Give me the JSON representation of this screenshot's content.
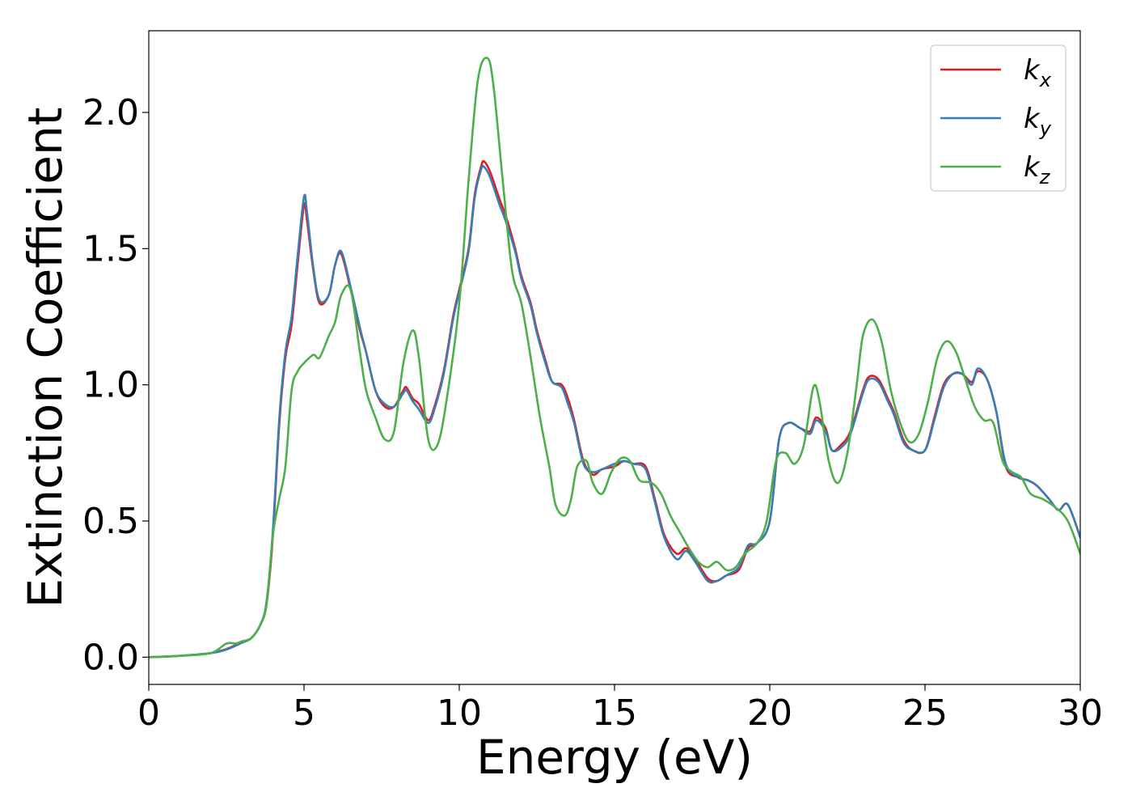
{
  "chart_data": {
    "type": "line",
    "title": "",
    "xlabel": "Energy (eV)",
    "ylabel": "Extinction Coefficient",
    "xlim": [
      0,
      30
    ],
    "ylim": [
      -0.1,
      2.3
    ],
    "xticks": [
      0,
      5,
      10,
      15,
      20,
      25,
      30
    ],
    "xtick_labels": [
      "0",
      "5",
      "10",
      "15",
      "20",
      "25",
      "30"
    ],
    "yticks": [
      0.0,
      0.5,
      1.0,
      1.5,
      2.0
    ],
    "ytick_labels": [
      "0.0",
      "0.5",
      "1.0",
      "1.5",
      "2.0"
    ],
    "grid": false,
    "legend_position": "top-right",
    "series": [
      {
        "name": "k_x",
        "label_base": "k",
        "label_sub": "x",
        "color": "#e41a1c",
        "x": [
          0,
          1,
          2,
          2.5,
          3,
          3.3,
          3.6,
          3.8,
          4.0,
          4.2,
          4.4,
          4.6,
          4.8,
          5.0,
          5.1,
          5.3,
          5.5,
          5.8,
          6.0,
          6.2,
          6.5,
          6.8,
          7.0,
          7.3,
          7.6,
          7.9,
          8.2,
          8.3,
          8.5,
          8.7,
          9.0,
          9.2,
          9.5,
          9.8,
          10.0,
          10.3,
          10.5,
          10.7,
          10.8,
          11.0,
          11.3,
          11.5,
          11.8,
          12.0,
          12.3,
          12.5,
          12.8,
          13.0,
          13.3,
          13.5,
          13.7,
          14.0,
          14.3,
          14.6,
          15.0,
          15.3,
          15.6,
          16.0,
          16.3,
          16.6,
          17.0,
          17.3,
          17.6,
          18.0,
          18.3,
          18.6,
          19.0,
          19.3,
          19.6,
          20.0,
          20.3,
          20.6,
          21.0,
          21.3,
          21.5,
          21.8,
          22.0,
          22.3,
          22.6,
          23.0,
          23.2,
          23.5,
          23.8,
          24.0,
          24.3,
          24.6,
          25.0,
          25.3,
          25.6,
          25.9,
          26.2,
          26.5,
          26.7,
          27.0,
          27.3,
          27.6,
          28.0,
          28.3,
          28.6,
          29.0,
          29.3,
          29.6,
          30.0
        ],
        "y": [
          0.0,
          0.005,
          0.015,
          0.03,
          0.055,
          0.07,
          0.12,
          0.2,
          0.45,
          0.85,
          1.1,
          1.22,
          1.45,
          1.66,
          1.6,
          1.42,
          1.3,
          1.33,
          1.44,
          1.48,
          1.35,
          1.2,
          1.12,
          0.98,
          0.92,
          0.92,
          0.98,
          0.99,
          0.95,
          0.93,
          0.87,
          0.92,
          1.05,
          1.25,
          1.35,
          1.5,
          1.7,
          1.8,
          1.82,
          1.78,
          1.68,
          1.62,
          1.5,
          1.4,
          1.3,
          1.2,
          1.08,
          1.01,
          1.0,
          0.95,
          0.87,
          0.72,
          0.67,
          0.69,
          0.7,
          0.72,
          0.71,
          0.7,
          0.58,
          0.45,
          0.38,
          0.4,
          0.36,
          0.29,
          0.28,
          0.3,
          0.32,
          0.4,
          0.42,
          0.5,
          0.8,
          0.86,
          0.84,
          0.83,
          0.88,
          0.84,
          0.76,
          0.78,
          0.83,
          0.98,
          1.03,
          1.02,
          0.95,
          0.9,
          0.8,
          0.76,
          0.76,
          0.88,
          1.0,
          1.04,
          1.04,
          1.01,
          1.05,
          1.02,
          0.9,
          0.7,
          0.66,
          0.65,
          0.63,
          0.58,
          0.54,
          0.56,
          0.44
        ]
      },
      {
        "name": "k_y",
        "label_base": "k",
        "label_sub": "y",
        "color": "#377eb8",
        "x": [
          0,
          1,
          2,
          2.5,
          3,
          3.3,
          3.6,
          3.8,
          4.0,
          4.2,
          4.4,
          4.6,
          4.8,
          5.0,
          5.1,
          5.3,
          5.5,
          5.8,
          6.0,
          6.2,
          6.5,
          6.8,
          7.0,
          7.3,
          7.6,
          7.9,
          8.2,
          8.3,
          8.5,
          8.7,
          9.0,
          9.2,
          9.5,
          9.8,
          10.0,
          10.3,
          10.5,
          10.7,
          10.8,
          11.0,
          11.3,
          11.5,
          11.8,
          12.0,
          12.3,
          12.5,
          12.8,
          13.0,
          13.3,
          13.5,
          13.7,
          14.0,
          14.3,
          14.6,
          15.0,
          15.3,
          15.6,
          16.0,
          16.3,
          16.6,
          17.0,
          17.3,
          17.6,
          18.0,
          18.3,
          18.6,
          19.0,
          19.3,
          19.6,
          20.0,
          20.3,
          20.6,
          21.0,
          21.3,
          21.5,
          21.8,
          22.0,
          22.3,
          22.6,
          23.0,
          23.2,
          23.5,
          23.8,
          24.0,
          24.3,
          24.6,
          25.0,
          25.3,
          25.6,
          25.9,
          26.2,
          26.5,
          26.7,
          27.0,
          27.3,
          27.6,
          28.0,
          28.3,
          28.6,
          29.0,
          29.3,
          29.6,
          30.0
        ],
        "y": [
          0.0,
          0.005,
          0.015,
          0.028,
          0.053,
          0.07,
          0.12,
          0.21,
          0.47,
          0.87,
          1.12,
          1.25,
          1.48,
          1.69,
          1.63,
          1.43,
          1.31,
          1.33,
          1.44,
          1.49,
          1.36,
          1.21,
          1.12,
          0.98,
          0.93,
          0.92,
          0.97,
          0.98,
          0.94,
          0.91,
          0.86,
          0.91,
          1.04,
          1.24,
          1.34,
          1.49,
          1.69,
          1.79,
          1.8,
          1.76,
          1.66,
          1.6,
          1.49,
          1.39,
          1.29,
          1.19,
          1.07,
          1.01,
          0.99,
          0.93,
          0.86,
          0.71,
          0.68,
          0.69,
          0.71,
          0.72,
          0.71,
          0.69,
          0.57,
          0.44,
          0.36,
          0.39,
          0.35,
          0.28,
          0.28,
          0.3,
          0.33,
          0.41,
          0.42,
          0.5,
          0.8,
          0.86,
          0.84,
          0.82,
          0.87,
          0.83,
          0.76,
          0.77,
          0.82,
          0.97,
          1.02,
          1.01,
          0.94,
          0.89,
          0.79,
          0.76,
          0.76,
          0.87,
          0.99,
          1.04,
          1.04,
          1.0,
          1.06,
          1.02,
          0.9,
          0.71,
          0.66,
          0.65,
          0.63,
          0.58,
          0.54,
          0.56,
          0.44
        ]
      },
      {
        "name": "k_z",
        "label_base": "k",
        "label_sub": "z",
        "color": "#4daf4a",
        "x": [
          0,
          1,
          2,
          2.5,
          2.8,
          3.0,
          3.3,
          3.6,
          3.8,
          4.0,
          4.2,
          4.4,
          4.6,
          4.8,
          5.0,
          5.3,
          5.5,
          5.8,
          6.0,
          6.2,
          6.5,
          6.8,
          7.0,
          7.3,
          7.6,
          7.9,
          8.2,
          8.5,
          8.7,
          9.0,
          9.3,
          9.6,
          10.0,
          10.3,
          10.6,
          10.9,
          11.1,
          11.4,
          11.7,
          12.0,
          12.3,
          12.6,
          12.9,
          13.1,
          13.4,
          13.6,
          13.8,
          14.1,
          14.3,
          14.6,
          14.9,
          15.2,
          15.5,
          15.8,
          16.2,
          16.5,
          16.8,
          17.1,
          17.4,
          17.7,
          18.0,
          18.3,
          18.6,
          18.9,
          19.2,
          19.6,
          19.9,
          20.2,
          20.5,
          20.8,
          21.1,
          21.4,
          21.6,
          21.9,
          22.2,
          22.5,
          22.8,
          23.0,
          23.3,
          23.6,
          23.9,
          24.2,
          24.5,
          24.8,
          25.1,
          25.4,
          25.7,
          26.0,
          26.3,
          26.6,
          26.9,
          27.2,
          27.5,
          27.8,
          28.1,
          28.4,
          28.8,
          29.2,
          29.6,
          30.0
        ],
        "y": [
          0.0,
          0.005,
          0.015,
          0.05,
          0.05,
          0.058,
          0.07,
          0.12,
          0.2,
          0.45,
          0.58,
          0.7,
          0.98,
          1.05,
          1.08,
          1.11,
          1.1,
          1.18,
          1.23,
          1.33,
          1.35,
          1.12,
          0.98,
          0.88,
          0.8,
          0.83,
          1.08,
          1.2,
          1.1,
          0.8,
          0.78,
          0.95,
          1.3,
          1.75,
          2.12,
          2.2,
          2.1,
          1.75,
          1.42,
          1.3,
          1.1,
          0.88,
          0.7,
          0.56,
          0.52,
          0.58,
          0.7,
          0.72,
          0.64,
          0.6,
          0.68,
          0.73,
          0.72,
          0.65,
          0.64,
          0.6,
          0.52,
          0.46,
          0.4,
          0.35,
          0.33,
          0.35,
          0.32,
          0.33,
          0.38,
          0.42,
          0.5,
          0.72,
          0.75,
          0.71,
          0.78,
          0.99,
          0.94,
          0.72,
          0.64,
          0.75,
          1.0,
          1.18,
          1.24,
          1.16,
          0.98,
          0.86,
          0.79,
          0.82,
          0.94,
          1.1,
          1.16,
          1.12,
          1.02,
          0.92,
          0.87,
          0.86,
          0.72,
          0.68,
          0.66,
          0.6,
          0.58,
          0.55,
          0.5,
          0.38
        ]
      }
    ]
  }
}
